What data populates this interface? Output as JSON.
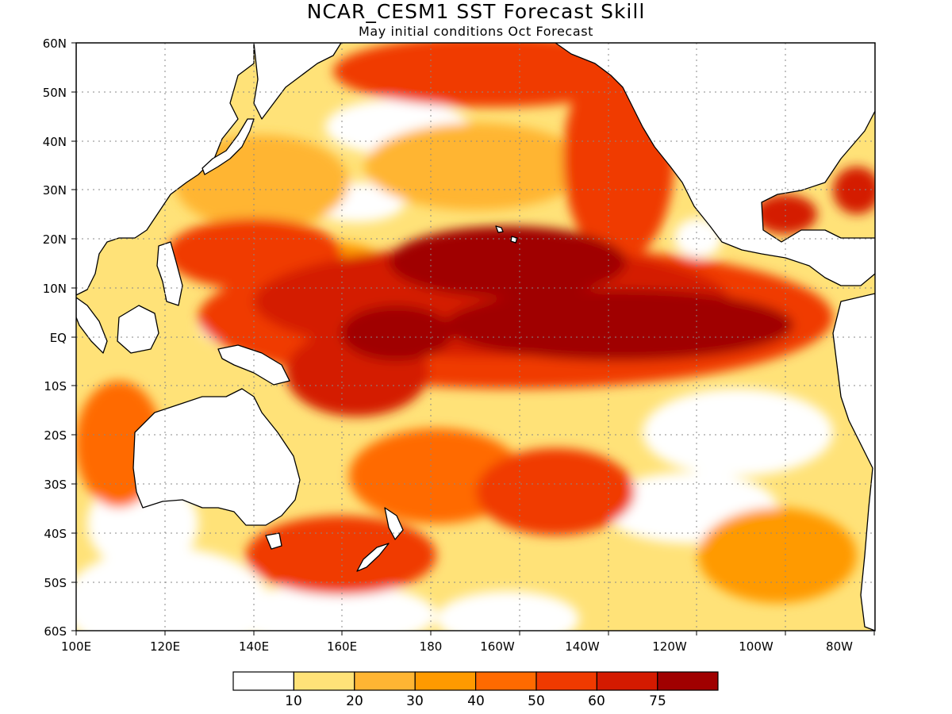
{
  "title": "NCAR_CESM1 SST Forecast Skill",
  "subtitle": "May initial conditions  Oct Forecast",
  "lon_ticks": [
    "100E",
    "120E",
    "140E",
    "160E",
    "180",
    "160W",
    "140W",
    "120W",
    "100W",
    "80W"
  ],
  "lat_ticks": [
    "60N",
    "50N",
    "40N",
    "30N",
    "20N",
    "10N",
    "EQ",
    "10S",
    "20S",
    "30S",
    "40S",
    "50S",
    "60S"
  ],
  "colorbar": {
    "labels": [
      "10",
      "20",
      "30",
      "40",
      "50",
      "60",
      "75"
    ],
    "colors": [
      "#ffffff",
      "#ffe278",
      "#ffb533",
      "#ff9a00",
      "#ff6a00",
      "#f03a00",
      "#d41a00",
      "#a00000"
    ]
  },
  "colors": {
    "ocean_base": "#ffe278",
    "land": "#ffffff",
    "coastline": "#000000"
  }
}
